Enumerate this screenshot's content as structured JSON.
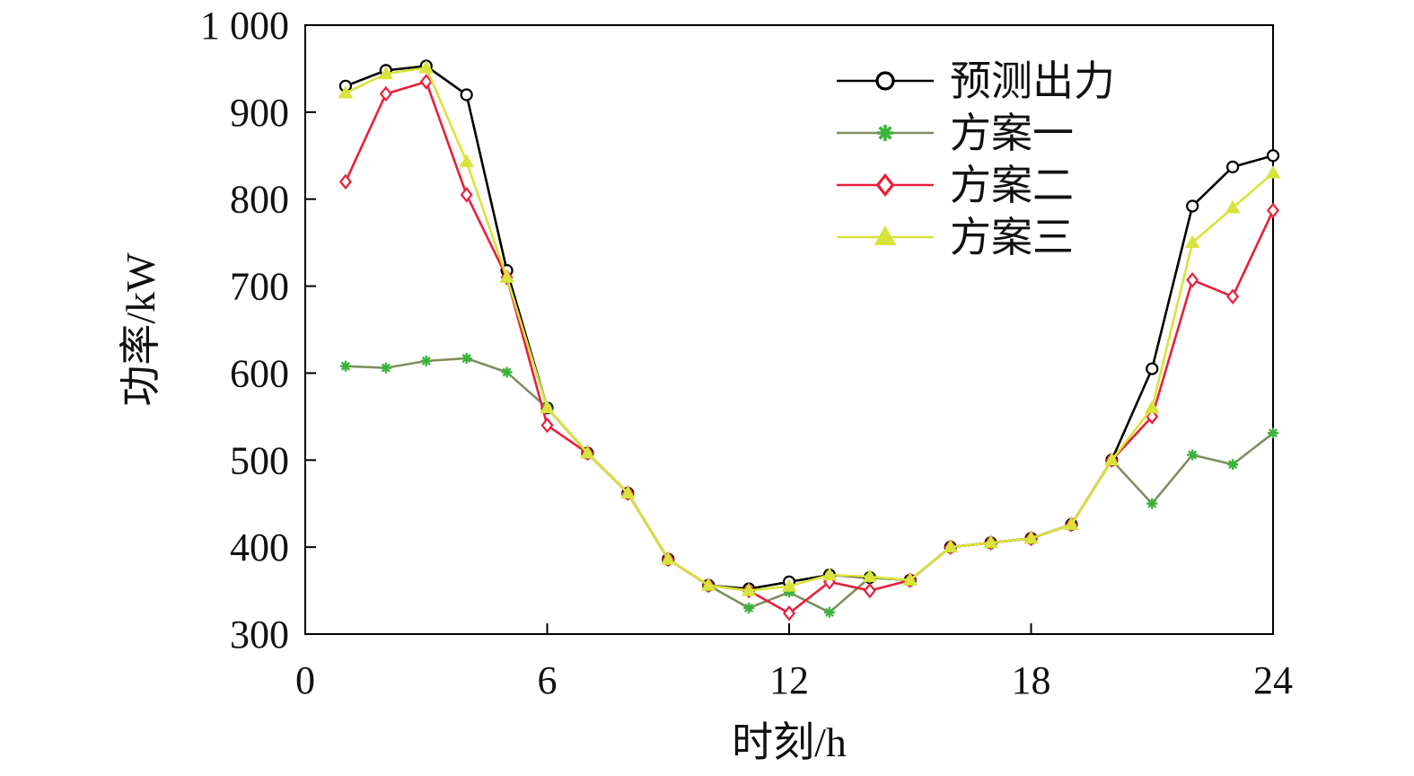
{
  "chart_data": {
    "type": "line",
    "title": "",
    "xlabel": "时刻/h",
    "ylabel": "功率/kW",
    "xlim": [
      0,
      24
    ],
    "ylim": [
      300,
      1000
    ],
    "xticks": [
      0,
      6,
      12,
      18,
      24
    ],
    "xtick_labels": [
      "0",
      "6",
      "12",
      "18",
      "24"
    ],
    "yticks": [
      300,
      400,
      500,
      600,
      700,
      800,
      900,
      1000
    ],
    "ytick_labels": [
      "300",
      "400",
      "500",
      "600",
      "700",
      "800",
      "900",
      "1 000"
    ],
    "grid": false,
    "legend_position": "top-right",
    "x": [
      1,
      2,
      3,
      4,
      5,
      6,
      7,
      8,
      9,
      10,
      11,
      12,
      13,
      14,
      15,
      16,
      17,
      18,
      19,
      20,
      21,
      22,
      23,
      24
    ],
    "series": [
      {
        "name": "预测出力",
        "color": "#000000",
        "marker": "circle",
        "values": [
          930,
          948,
          953,
          920,
          718,
          560,
          508,
          462,
          386,
          356,
          352,
          360,
          368,
          365,
          362,
          400,
          405,
          410,
          426,
          500,
          605,
          792,
          837,
          850
        ]
      },
      {
        "name": "方案一",
        "color": "#7f8f5f",
        "marker_color": "#3cb43c",
        "marker": "star",
        "values": [
          608,
          606,
          614,
          617,
          601,
          560,
          508,
          462,
          386,
          356,
          330,
          348,
          325,
          365,
          362,
          400,
          405,
          410,
          426,
          500,
          450,
          506,
          495,
          531
        ]
      },
      {
        "name": "方案二",
        "color": "#e8203c",
        "marker": "diamond",
        "values": [
          820,
          921,
          935,
          805,
          710,
          540,
          508,
          462,
          386,
          356,
          350,
          324,
          360,
          350,
          362,
          400,
          405,
          410,
          426,
          500,
          550,
          707,
          688,
          787
        ]
      },
      {
        "name": "方案三",
        "color": "#d8e43c",
        "marker": "triangle",
        "values": [
          922,
          944,
          951,
          843,
          710,
          560,
          508,
          462,
          386,
          356,
          350,
          355,
          368,
          366,
          362,
          400,
          405,
          410,
          426,
          500,
          560,
          750,
          790,
          830
        ]
      }
    ]
  }
}
